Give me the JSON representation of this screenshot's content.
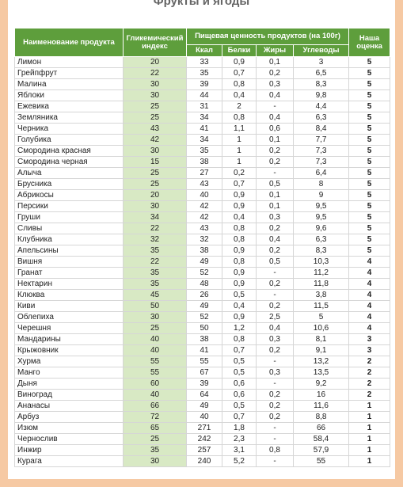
{
  "title": "Фрукты и ягоды",
  "table": {
    "headers": {
      "name": "Наименование продукта",
      "gi": "Гликемический индекс",
      "nutrition": "Пищевая ценность продуктов (на 100г)",
      "kcal": "Ккал",
      "protein": "Белки",
      "fat": "Жиры",
      "carbs": "Углеводы",
      "rating": "Наша оценка"
    },
    "rows": [
      [
        "Лимон",
        "20",
        "33",
        "0,9",
        "0,1",
        "3",
        "5"
      ],
      [
        "Грейпфрут",
        "22",
        "35",
        "0,7",
        "0,2",
        "6,5",
        "5"
      ],
      [
        "Малина",
        "30",
        "39",
        "0,8",
        "0,3",
        "8,3",
        "5"
      ],
      [
        "Яблоки",
        "30",
        "44",
        "0,4",
        "0,4",
        "9,8",
        "5"
      ],
      [
        "Ежевика",
        "25",
        "31",
        "2",
        "-",
        "4,4",
        "5"
      ],
      [
        "Земляника",
        "25",
        "34",
        "0,8",
        "0,4",
        "6,3",
        "5"
      ],
      [
        "Черника",
        "43",
        "41",
        "1,1",
        "0,6",
        "8,4",
        "5"
      ],
      [
        "Голубика",
        "42",
        "34",
        "1",
        "0,1",
        "7,7",
        "5"
      ],
      [
        "Смородина красная",
        "30",
        "35",
        "1",
        "0,2",
        "7,3",
        "5"
      ],
      [
        "Смородина черная",
        "15",
        "38",
        "1",
        "0,2",
        "7,3",
        "5"
      ],
      [
        "Алыча",
        "25",
        "27",
        "0,2",
        "-",
        "6,4",
        "5"
      ],
      [
        "Брусника",
        "25",
        "43",
        "0,7",
        "0,5",
        "8",
        "5"
      ],
      [
        "Абрикосы",
        "20",
        "40",
        "0,9",
        "0,1",
        "9",
        "5"
      ],
      [
        "Персики",
        "30",
        "42",
        "0,9",
        "0,1",
        "9,5",
        "5"
      ],
      [
        "Груши",
        "34",
        "42",
        "0,4",
        "0,3",
        "9,5",
        "5"
      ],
      [
        "Сливы",
        "22",
        "43",
        "0,8",
        "0,2",
        "9,6",
        "5"
      ],
      [
        "Клубника",
        "32",
        "32",
        "0,8",
        "0,4",
        "6,3",
        "5"
      ],
      [
        "Апельсины",
        "35",
        "38",
        "0,9",
        "0,2",
        "8,3",
        "5"
      ],
      [
        "Вишня",
        "22",
        "49",
        "0,8",
        "0,5",
        "10,3",
        "4"
      ],
      [
        "Гранат",
        "35",
        "52",
        "0,9",
        "-",
        "11,2",
        "4"
      ],
      [
        "Нектарин",
        "35",
        "48",
        "0,9",
        "0,2",
        "11,8",
        "4"
      ],
      [
        "Клюква",
        "45",
        "26",
        "0,5",
        "-",
        "3,8",
        "4"
      ],
      [
        "Киви",
        "50",
        "49",
        "0,4",
        "0,2",
        "11,5",
        "4"
      ],
      [
        "Облепиха",
        "30",
        "52",
        "0,9",
        "2,5",
        "5",
        "4"
      ],
      [
        "Черешня",
        "25",
        "50",
        "1,2",
        "0,4",
        "10,6",
        "4"
      ],
      [
        "Мандарины",
        "40",
        "38",
        "0,8",
        "0,3",
        "8,1",
        "3"
      ],
      [
        "Крыжовник",
        "40",
        "41",
        "0,7",
        "0,2",
        "9,1",
        "3"
      ],
      [
        "Хурма",
        "55",
        "55",
        "0,5",
        "-",
        "13,2",
        "2"
      ],
      [
        "Манго",
        "55",
        "67",
        "0,5",
        "0,3",
        "13,5",
        "2"
      ],
      [
        "Дыня",
        "60",
        "39",
        "0,6",
        "-",
        "9,2",
        "2"
      ],
      [
        "Виноград",
        "40",
        "64",
        "0,6",
        "0,2",
        "16",
        "2"
      ],
      [
        "Ананасы",
        "66",
        "49",
        "0,5",
        "0,2",
        "11,6",
        "1"
      ],
      [
        "Арбуз",
        "72",
        "40",
        "0,7",
        "0,2",
        "8,8",
        "1"
      ],
      [
        "Изюм",
        "65",
        "271",
        "1,8",
        "-",
        "66",
        "1"
      ],
      [
        "Чернослив",
        "25",
        "242",
        "2,3",
        "-",
        "58,4",
        "1"
      ],
      [
        "Инжир",
        "35",
        "257",
        "3,1",
        "0,8",
        "57,9",
        "1"
      ],
      [
        "Курага",
        "30",
        "240",
        "5,2",
        "-",
        "55",
        "1"
      ]
    ]
  }
}
